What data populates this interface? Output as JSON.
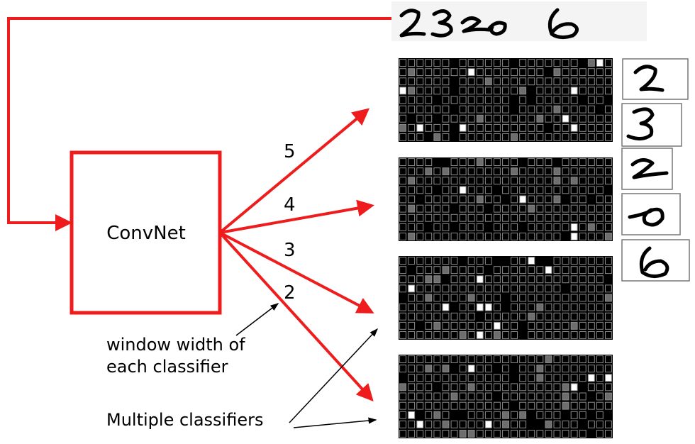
{
  "labels": {
    "convnet": "ConvNet",
    "window_width": [
      "window width of",
      "each classifier"
    ],
    "multiple": "Multiple classifiers"
  },
  "arrow_widths": [
    "5",
    "4",
    "3",
    "2"
  ],
  "input_digits": "23206",
  "segments": [
    "2",
    "3",
    "2",
    "0",
    "6"
  ],
  "colors": {
    "arrow": "#ee1c1c",
    "grid_bg": "#000000",
    "grid_line": "#8a8a8a",
    "cell_gray": "#6e6e6e",
    "cell_white": "#ffffff"
  }
}
